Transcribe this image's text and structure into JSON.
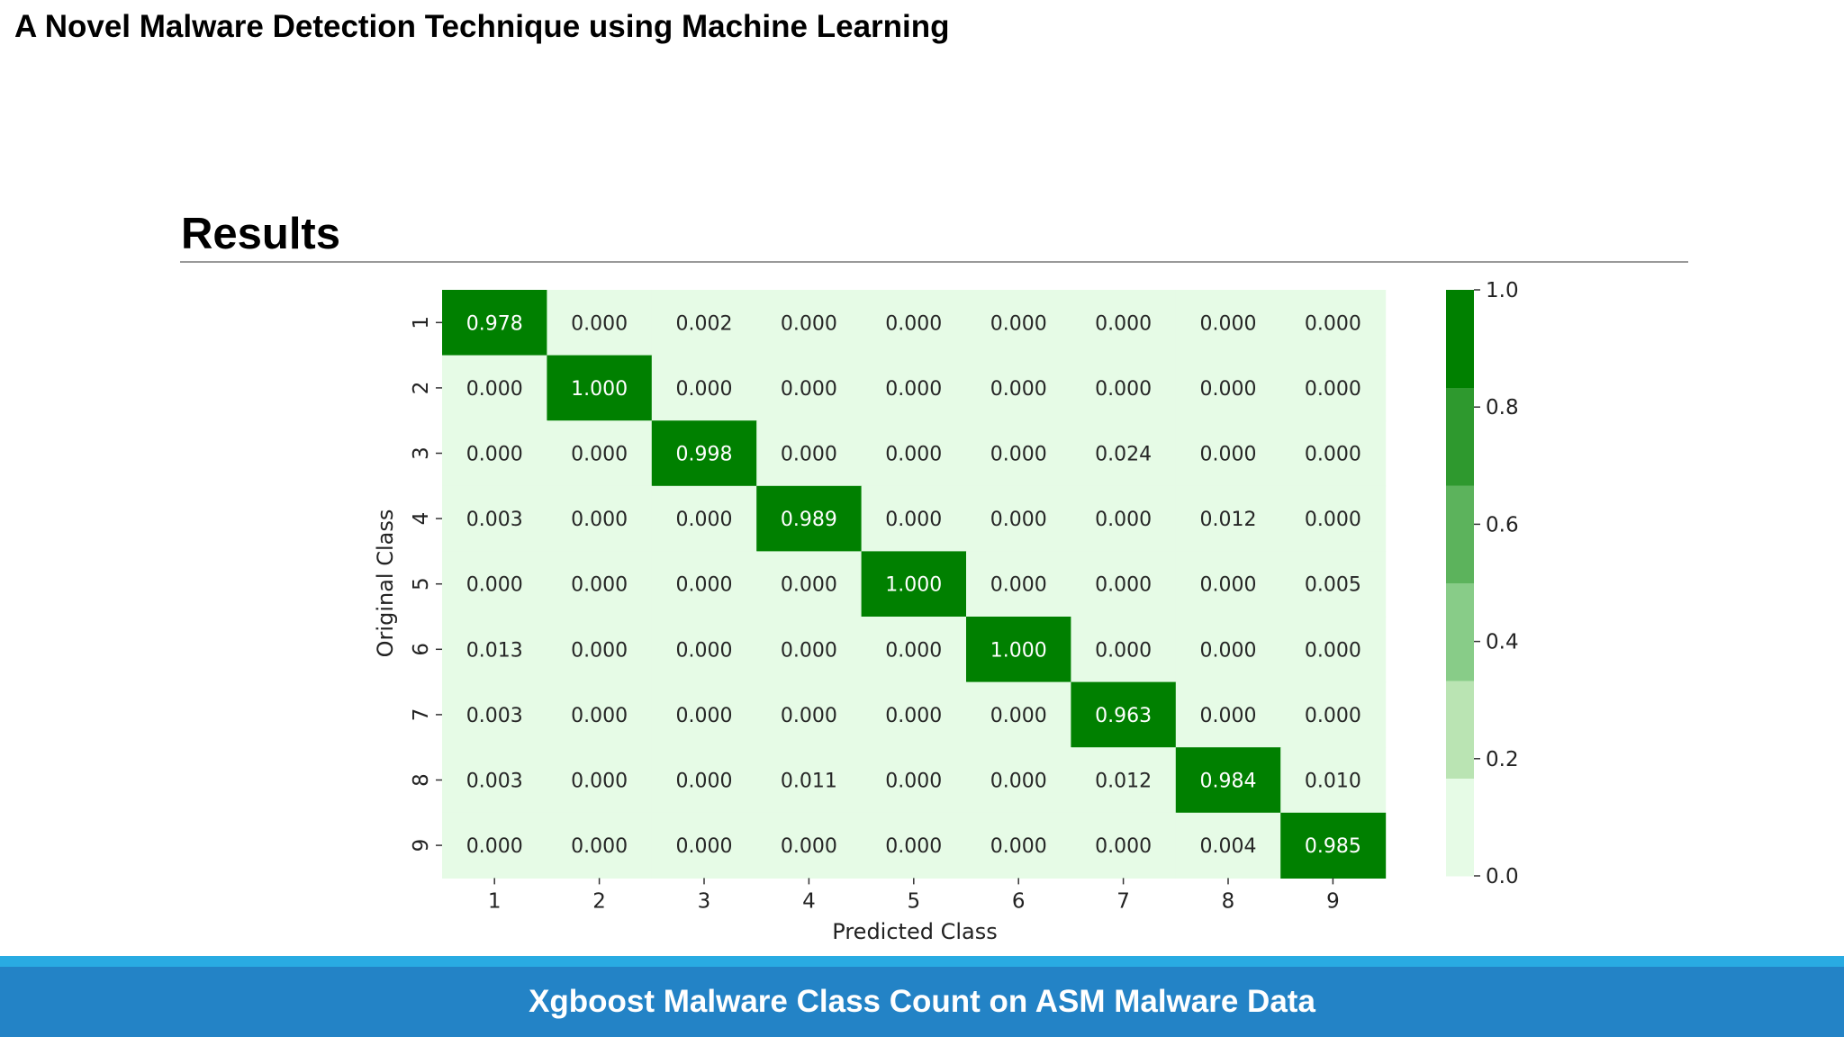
{
  "slide": {
    "deck_title": "A Novel Malware Detection Technique using Machine Learning",
    "heading": "Results",
    "footer_caption": "Xgboost Malware Class Count on ASM Malware Data"
  },
  "chart_data": {
    "type": "heatmap",
    "title": "",
    "xlabel": "Predicted Class",
    "ylabel": "Original Class",
    "x_categories": [
      "1",
      "2",
      "3",
      "4",
      "5",
      "6",
      "7",
      "8",
      "9"
    ],
    "y_categories": [
      "1",
      "2",
      "3",
      "4",
      "5",
      "6",
      "7",
      "8",
      "9"
    ],
    "values": [
      [
        0.978,
        0.0,
        0.002,
        0.0,
        0.0,
        0.0,
        0.0,
        0.0,
        0.0
      ],
      [
        0.0,
        1.0,
        0.0,
        0.0,
        0.0,
        0.0,
        0.0,
        0.0,
        0.0
      ],
      [
        0.0,
        0.0,
        0.998,
        0.0,
        0.0,
        0.0,
        0.024,
        0.0,
        0.0
      ],
      [
        0.003,
        0.0,
        0.0,
        0.989,
        0.0,
        0.0,
        0.0,
        0.012,
        0.0
      ],
      [
        0.0,
        0.0,
        0.0,
        0.0,
        1.0,
        0.0,
        0.0,
        0.0,
        0.005
      ],
      [
        0.013,
        0.0,
        0.0,
        0.0,
        0.0,
        1.0,
        0.0,
        0.0,
        0.0
      ],
      [
        0.003,
        0.0,
        0.0,
        0.0,
        0.0,
        0.0,
        0.963,
        0.0,
        0.0
      ],
      [
        0.003,
        0.0,
        0.0,
        0.011,
        0.0,
        0.0,
        0.012,
        0.984,
        0.01
      ],
      [
        0.0,
        0.0,
        0.0,
        0.0,
        0.0,
        0.0,
        0.0,
        0.004,
        0.985
      ]
    ],
    "value_format": "3 decimals",
    "colorbar": {
      "range": [
        0.0,
        1.0
      ],
      "ticks": [
        "0.0",
        "0.2",
        "0.4",
        "0.6",
        "0.8",
        "1.0"
      ],
      "colors": [
        "#e6fbe6",
        "#bae4b3",
        "#88cc88",
        "#5cb35c",
        "#2e992e",
        "#008000"
      ]
    },
    "grid": false,
    "legend": "colorbar-right"
  }
}
